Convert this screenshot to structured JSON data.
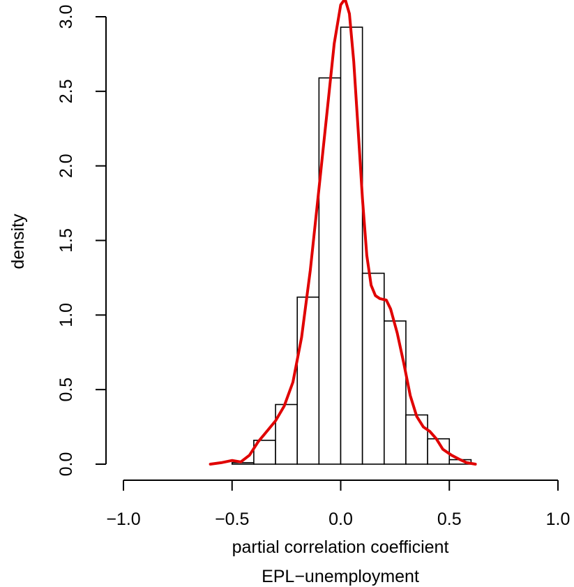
{
  "chart_data": {
    "type": "bar",
    "subtype": "histogram with density curve",
    "title": "",
    "xlabel": "partial correlation coefficient",
    "xlabel_line2": "EPL−unemployment",
    "ylabel": "density",
    "xlim": [
      -1.0,
      1.0
    ],
    "ylim": [
      0,
      3.0
    ],
    "x_ticks": [
      -1.0,
      -0.5,
      0.0,
      0.5,
      1.0
    ],
    "x_tick_labels": [
      "−1.0",
      "−0.5",
      "0.0",
      "0.5",
      "1.0"
    ],
    "y_ticks": [
      0.0,
      0.5,
      1.0,
      1.5,
      2.0,
      2.5,
      3.0
    ],
    "y_tick_labels": [
      "0.0",
      "0.5",
      "1.0",
      "1.5",
      "2.0",
      "2.5",
      "3.0"
    ],
    "grid": false,
    "legend": "none",
    "bin_width": 0.1,
    "bins": [
      {
        "x0": -0.6,
        "x1": -0.5,
        "density": 0.0
      },
      {
        "x0": -0.5,
        "x1": -0.4,
        "density": 0.01
      },
      {
        "x0": -0.4,
        "x1": -0.3,
        "density": 0.16
      },
      {
        "x0": -0.3,
        "x1": -0.2,
        "density": 0.4
      },
      {
        "x0": -0.2,
        "x1": -0.1,
        "density": 1.12
      },
      {
        "x0": -0.1,
        "x1": 0.0,
        "density": 2.59
      },
      {
        "x0": 0.0,
        "x1": 0.1,
        "density": 2.93
      },
      {
        "x0": 0.1,
        "x1": 0.2,
        "density": 1.28
      },
      {
        "x0": 0.2,
        "x1": 0.3,
        "density": 0.96
      },
      {
        "x0": 0.3,
        "x1": 0.4,
        "density": 0.33
      },
      {
        "x0": 0.4,
        "x1": 0.5,
        "density": 0.17
      },
      {
        "x0": 0.5,
        "x1": 0.6,
        "density": 0.03
      }
    ],
    "density_curve": {
      "color": "#e00000",
      "points": [
        [
          -0.6,
          0.0
        ],
        [
          -0.55,
          0.01
        ],
        [
          -0.5,
          0.025
        ],
        [
          -0.46,
          0.015
        ],
        [
          -0.42,
          0.06
        ],
        [
          -0.38,
          0.15
        ],
        [
          -0.34,
          0.22
        ],
        [
          -0.3,
          0.29
        ],
        [
          -0.26,
          0.39
        ],
        [
          -0.22,
          0.55
        ],
        [
          -0.18,
          0.85
        ],
        [
          -0.14,
          1.3
        ],
        [
          -0.1,
          1.85
        ],
        [
          -0.06,
          2.4
        ],
        [
          -0.03,
          2.82
        ],
        [
          0.0,
          3.08
        ],
        [
          0.02,
          3.12
        ],
        [
          0.04,
          3.02
        ],
        [
          0.06,
          2.7
        ],
        [
          0.08,
          2.25
        ],
        [
          0.1,
          1.78
        ],
        [
          0.12,
          1.4
        ],
        [
          0.14,
          1.2
        ],
        [
          0.16,
          1.13
        ],
        [
          0.18,
          1.11
        ],
        [
          0.21,
          1.1
        ],
        [
          0.23,
          1.04
        ],
        [
          0.26,
          0.88
        ],
        [
          0.29,
          0.68
        ],
        [
          0.32,
          0.46
        ],
        [
          0.35,
          0.32
        ],
        [
          0.38,
          0.25
        ],
        [
          0.41,
          0.22
        ],
        [
          0.44,
          0.17
        ],
        [
          0.47,
          0.1
        ],
        [
          0.51,
          0.06
        ],
        [
          0.55,
          0.03
        ],
        [
          0.58,
          0.01
        ],
        [
          0.62,
          0.0
        ]
      ]
    }
  }
}
